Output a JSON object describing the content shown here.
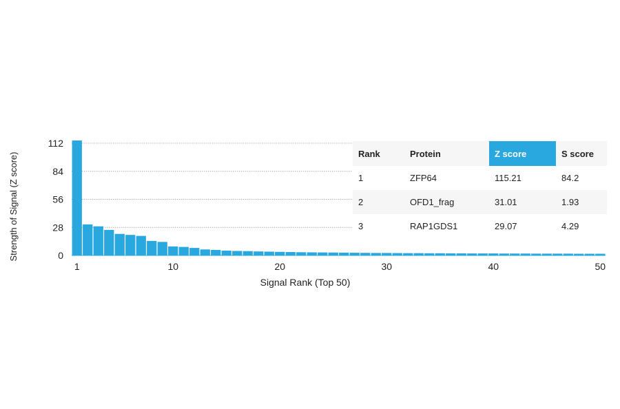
{
  "chart_data": {
    "type": "bar",
    "xlabel": "Signal Rank (Top 50)",
    "ylabel": "Strength of Signal (Z score)",
    "x": [
      1,
      2,
      3,
      4,
      5,
      6,
      7,
      8,
      9,
      10,
      11,
      12,
      13,
      14,
      15,
      16,
      17,
      18,
      19,
      20,
      21,
      22,
      23,
      24,
      25,
      26,
      27,
      28,
      29,
      30,
      31,
      32,
      33,
      34,
      35,
      36,
      37,
      38,
      39,
      40,
      41,
      42,
      43,
      44,
      45,
      46,
      47,
      48,
      49,
      50
    ],
    "values": [
      115.21,
      31.01,
      29.07,
      25.5,
      21.5,
      20.5,
      19.5,
      14.5,
      13.5,
      9.0,
      8.5,
      7.5,
      6.0,
      5.5,
      4.8,
      4.5,
      4.3,
      4.0,
      3.8,
      3.6,
      3.4,
      3.2,
      3.1,
      3.0,
      2.9,
      2.8,
      2.7,
      2.6,
      2.5,
      2.5,
      2.4,
      2.3,
      2.3,
      2.2,
      2.2,
      2.1,
      2.1,
      2.0,
      2.0,
      2.0,
      1.9,
      1.9,
      1.9,
      1.8,
      1.8,
      1.8,
      1.8,
      1.7,
      1.7,
      1.7
    ],
    "xticks": [
      1,
      10,
      20,
      30,
      40,
      50
    ],
    "yticks": [
      0,
      28,
      56,
      84,
      112
    ],
    "ylim": [
      0,
      112
    ],
    "xlim": [
      1,
      50
    ],
    "grid": "horizontal dotted",
    "color": "#29a8e0"
  },
  "table": {
    "headers": {
      "rank": "Rank",
      "protein": "Protein",
      "z": "Z score",
      "s": "S score"
    },
    "rows": [
      {
        "rank": "1",
        "protein": "ZFP64",
        "z": "115.21",
        "s": "84.2"
      },
      {
        "rank": "2",
        "protein": "OFD1_frag",
        "z": "31.01",
        "s": "1.93"
      },
      {
        "rank": "3",
        "protein": "RAP1GDS1",
        "z": "29.07",
        "s": "4.29"
      }
    ],
    "highlight_color": "#29a8e0"
  }
}
